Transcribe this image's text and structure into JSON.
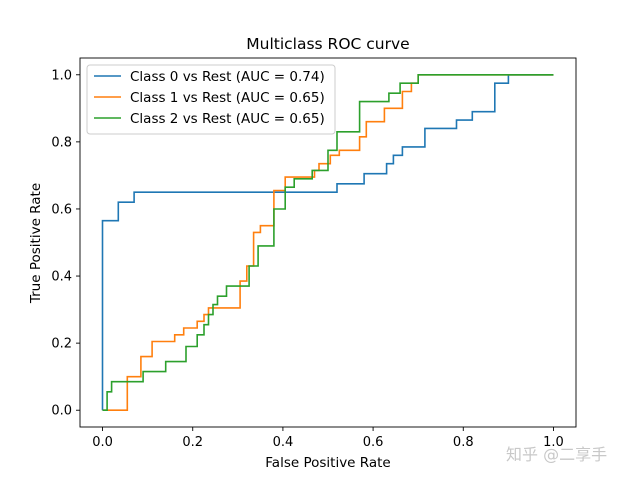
{
  "chart_data": {
    "type": "line",
    "title": "Multiclass ROC curve",
    "xlabel": "False Positive Rate",
    "ylabel": "True Positive Rate",
    "xlim": [
      -0.05,
      1.05
    ],
    "ylim": [
      -0.05,
      1.05
    ],
    "xticks": [
      "0.0",
      "0.2",
      "0.4",
      "0.6",
      "0.8",
      "1.0"
    ],
    "yticks": [
      "0.0",
      "0.2",
      "0.4",
      "0.6",
      "0.8",
      "1.0"
    ],
    "legend_position": "top-left",
    "grid": false,
    "series": [
      {
        "name": "Class 0 vs Rest (AUC = 0.74)",
        "color": "#1f77b4",
        "x": [
          0,
          0,
          0.035,
          0.035,
          0.07,
          0.07,
          0.52,
          0.52,
          0.58,
          0.58,
          0.63,
          0.63,
          0.645,
          0.645,
          0.665,
          0.665,
          0.715,
          0.715,
          0.785,
          0.785,
          0.82,
          0.82,
          0.87,
          0.87,
          0.9,
          0.9,
          1.0
        ],
        "y": [
          0,
          0.565,
          0.565,
          0.62,
          0.62,
          0.65,
          0.65,
          0.675,
          0.675,
          0.705,
          0.705,
          0.735,
          0.735,
          0.76,
          0.76,
          0.785,
          0.785,
          0.84,
          0.84,
          0.865,
          0.865,
          0.89,
          0.89,
          0.975,
          0.975,
          1.0,
          1.0
        ]
      },
      {
        "name": "Class 1 vs Rest (AUC = 0.65)",
        "color": "#ff7f0e",
        "x": [
          0,
          0,
          0.055,
          0.055,
          0.085,
          0.085,
          0.11,
          0.11,
          0.16,
          0.16,
          0.18,
          0.18,
          0.21,
          0.21,
          0.225,
          0.225,
          0.235,
          0.235,
          0.305,
          0.305,
          0.32,
          0.32,
          0.335,
          0.335,
          0.35,
          0.35,
          0.38,
          0.38,
          0.405,
          0.405,
          0.47,
          0.47,
          0.48,
          0.48,
          0.505,
          0.505,
          0.525,
          0.525,
          0.57,
          0.57,
          0.585,
          0.585,
          0.625,
          0.625,
          0.665,
          0.665,
          0.685,
          0.685,
          0.7,
          0.7,
          1.0
        ],
        "y": [
          0,
          0,
          0,
          0.1,
          0.1,
          0.16,
          0.16,
          0.205,
          0.205,
          0.225,
          0.225,
          0.245,
          0.245,
          0.265,
          0.265,
          0.285,
          0.285,
          0.305,
          0.305,
          0.385,
          0.385,
          0.43,
          0.43,
          0.53,
          0.53,
          0.55,
          0.55,
          0.655,
          0.655,
          0.695,
          0.695,
          0.715,
          0.715,
          0.735,
          0.735,
          0.76,
          0.76,
          0.775,
          0.775,
          0.815,
          0.815,
          0.86,
          0.86,
          0.9,
          0.9,
          0.95,
          0.95,
          0.975,
          0.975,
          1.0,
          1.0
        ]
      },
      {
        "name": "Class 2 vs Rest (AUC = 0.65)",
        "color": "#2ca02c",
        "x": [
          0,
          0.01,
          0.01,
          0.02,
          0.02,
          0.09,
          0.09,
          0.14,
          0.14,
          0.185,
          0.185,
          0.21,
          0.21,
          0.225,
          0.225,
          0.235,
          0.235,
          0.245,
          0.245,
          0.255,
          0.255,
          0.275,
          0.275,
          0.325,
          0.325,
          0.345,
          0.345,
          0.38,
          0.38,
          0.405,
          0.405,
          0.425,
          0.425,
          0.465,
          0.465,
          0.5,
          0.5,
          0.52,
          0.52,
          0.57,
          0.57,
          0.635,
          0.635,
          0.66,
          0.66,
          0.7,
          0.7,
          1.0
        ],
        "y": [
          0,
          0,
          0.055,
          0.055,
          0.085,
          0.085,
          0.115,
          0.115,
          0.145,
          0.145,
          0.19,
          0.19,
          0.225,
          0.225,
          0.255,
          0.255,
          0.285,
          0.285,
          0.315,
          0.315,
          0.34,
          0.34,
          0.37,
          0.37,
          0.43,
          0.43,
          0.49,
          0.49,
          0.6,
          0.6,
          0.665,
          0.665,
          0.69,
          0.69,
          0.715,
          0.715,
          0.775,
          0.775,
          0.83,
          0.83,
          0.92,
          0.92,
          0.945,
          0.945,
          0.975,
          0.975,
          1.0,
          1.0
        ]
      }
    ]
  },
  "watermark": "知乎 @二享手"
}
